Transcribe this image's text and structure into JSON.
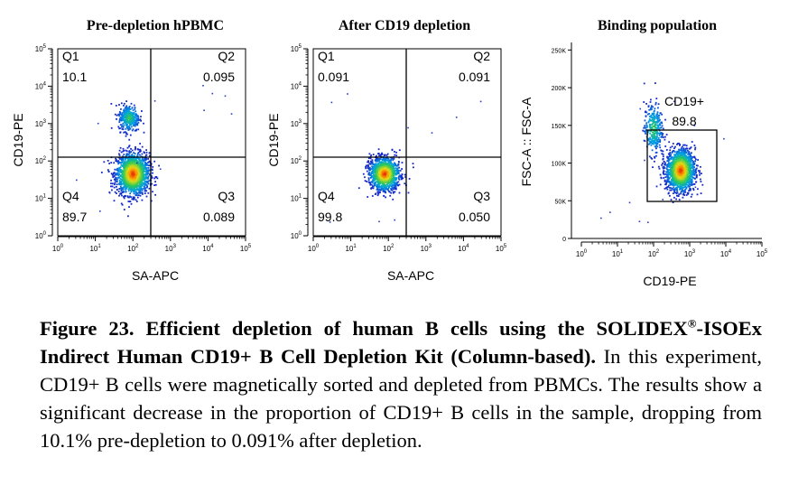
{
  "chart_data": [
    {
      "type": "scatter",
      "title": "Pre-depletion hPBMC",
      "xlabel": "SA-APC",
      "ylabel": "CD19-PE",
      "xscale": "log",
      "yscale": "log",
      "xlim": [
        1,
        100000
      ],
      "ylim": [
        1,
        100000
      ],
      "x_ticks": [
        "10^0",
        "10^1",
        "10^2",
        "10^3",
        "10^4",
        "10^5"
      ],
      "y_ticks": [
        "10^0",
        "10^1",
        "10^2",
        "10^3",
        "10^4",
        "10^5"
      ],
      "quadrant_gate": {
        "x": 250,
        "y": 130
      },
      "quadrants": [
        {
          "name": "Q1",
          "value": "10.1",
          "position": "top-left"
        },
        {
          "name": "Q2",
          "value": "0.095",
          "position": "top-right"
        },
        {
          "name": "Q3",
          "value": "0.089",
          "position": "bottom-right"
        },
        {
          "name": "Q4",
          "value": "89.7",
          "position": "bottom-left"
        }
      ],
      "populations": [
        {
          "name": "",
          "center_log": [
            2.0,
            1.65
          ],
          "spread_log": [
            0.22,
            0.28
          ],
          "n": 1600
        },
        {
          "name": "",
          "center_log": [
            1.9,
            3.15
          ],
          "spread_log": [
            0.14,
            0.18
          ],
          "n": 330
        }
      ]
    },
    {
      "type": "scatter",
      "title": "After CD19 depletion",
      "xlabel": "SA-APC",
      "ylabel": "CD19-PE",
      "xscale": "log",
      "yscale": "log",
      "xlim": [
        1,
        100000
      ],
      "ylim": [
        1,
        100000
      ],
      "x_ticks": [
        "10^0",
        "10^1",
        "10^2",
        "10^3",
        "10^4",
        "10^5"
      ],
      "y_ticks": [
        "10^0",
        "10^1",
        "10^2",
        "10^3",
        "10^4",
        "10^5"
      ],
      "quadrant_gate": {
        "x": 250,
        "y": 130
      },
      "quadrants": [
        {
          "name": "Q1",
          "value": "0.091",
          "position": "top-left"
        },
        {
          "name": "Q2",
          "value": "0.091",
          "position": "top-right"
        },
        {
          "name": "Q3",
          "value": "0.050",
          "position": "bottom-right"
        },
        {
          "name": "Q4",
          "value": "99.8",
          "position": "bottom-left"
        }
      ],
      "populations": [
        {
          "name": "",
          "center_log": [
            1.9,
            1.65
          ],
          "spread_log": [
            0.2,
            0.22
          ],
          "n": 1200
        }
      ]
    },
    {
      "type": "scatter",
      "title": "Binding population",
      "xlabel": "CD19-PE",
      "ylabel": "FSC-A :: FSC-A",
      "xscale": "log",
      "yscale": "linear",
      "xlim": [
        1,
        100000
      ],
      "ylim": [
        0,
        260000
      ],
      "x_ticks": [
        "10^0",
        "10^1",
        "10^2",
        "10^3",
        "10^4",
        "10^5"
      ],
      "y_ticks": [
        "0",
        "50K",
        "100K",
        "150K",
        "200K",
        "250K"
      ],
      "gate": {
        "name": "CD19+",
        "value": "89.8",
        "x_range": [
          120,
          8000
        ],
        "y_range": [
          48000,
          142000
        ]
      },
      "populations": [
        {
          "name": "",
          "center": [
            2.75,
            90000
          ],
          "spread": [
            0.2,
            14000
          ],
          "n": 1500
        },
        {
          "name": "",
          "center": [
            2.0,
            145000
          ],
          "spread": [
            0.13,
            17000
          ],
          "n": 300
        }
      ]
    }
  ],
  "caption": {
    "lead": "Figure 23. Efficient depletion of human B cells using the SOLIDEX",
    "reg": "®",
    "lead2": "-ISOEx Indirect Human CD19+ B Cell Depletion Kit (Column-based).",
    "body": " In this experiment, CD19+ B cells were magnetically sorted and depleted from PBMCs. The results show a significant decrease in the proportion of CD19+ B cells in the sample, dropping from 10.1% pre-depletion to 0.091% after depletion."
  }
}
